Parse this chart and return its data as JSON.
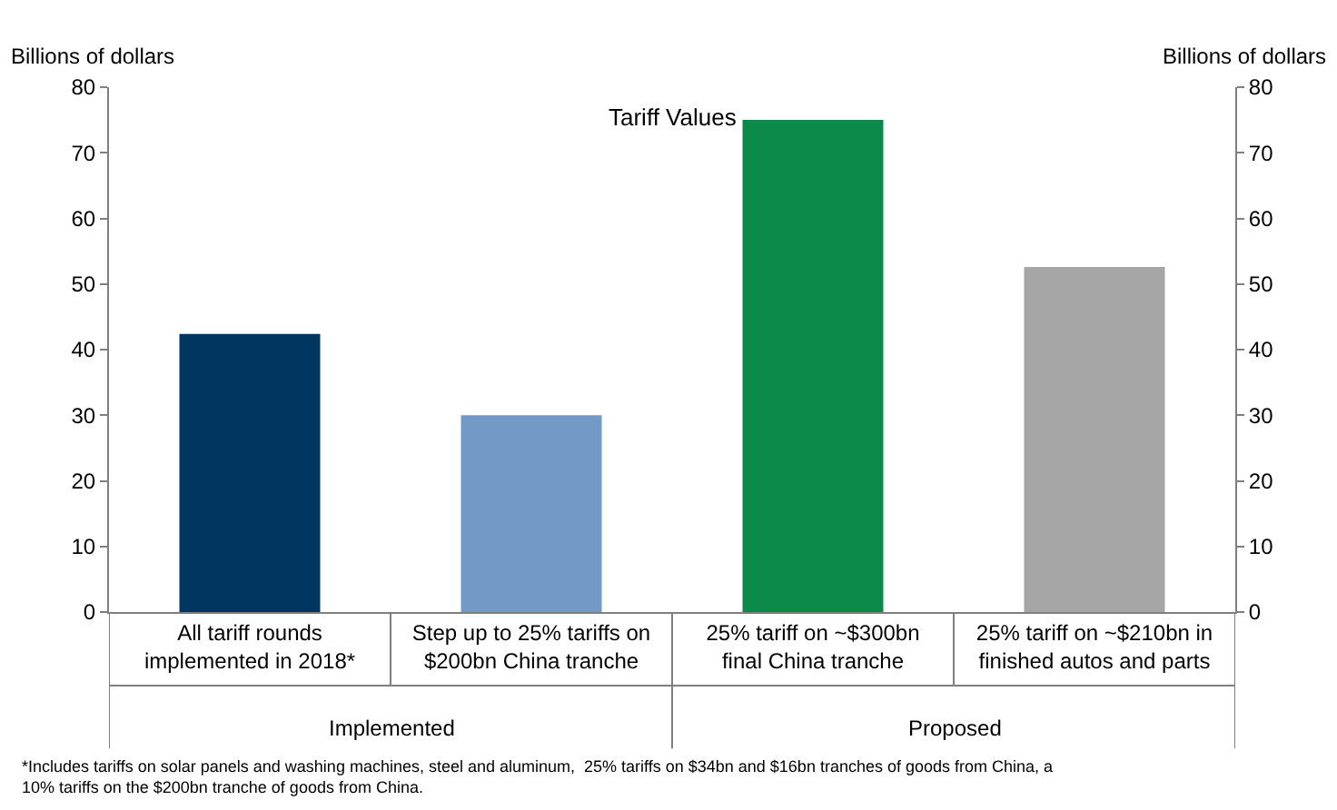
{
  "chart_data": {
    "type": "bar",
    "title": "Tariff Values",
    "ylabel": "Billions of dollars",
    "y2label": "Billions of dollars",
    "categories": [
      "All tariff rounds implemented in 2018*",
      "Step up to 25% tariffs on $200bn China tranche",
      "25% tariff on ~$300bn final China tranche",
      "25% tariff on ~$210bn in finished autos and parts"
    ],
    "values": [
      42.4,
      30,
      75,
      52.6
    ],
    "colors": [
      "#003660",
      "#7399c6",
      "#0b8a4a",
      "#a6a6a6"
    ],
    "ylim": [
      0,
      80
    ],
    "yticks": [
      0,
      10,
      20,
      30,
      40,
      50,
      60,
      70,
      80
    ],
    "y2lim": [
      0,
      80
    ],
    "y2ticks": [
      0,
      10,
      20,
      30,
      40,
      50,
      60,
      70,
      80
    ],
    "annotations": [
      "Implemented",
      "Proposed",
      "*Includes tariffs on solar panels and washing machines, steel and aluminum,  25% tariffs on $34bn and $16bn tranches of goods from China, a\n10% tariffs on the $200bn tranche of goods from China."
    ]
  }
}
